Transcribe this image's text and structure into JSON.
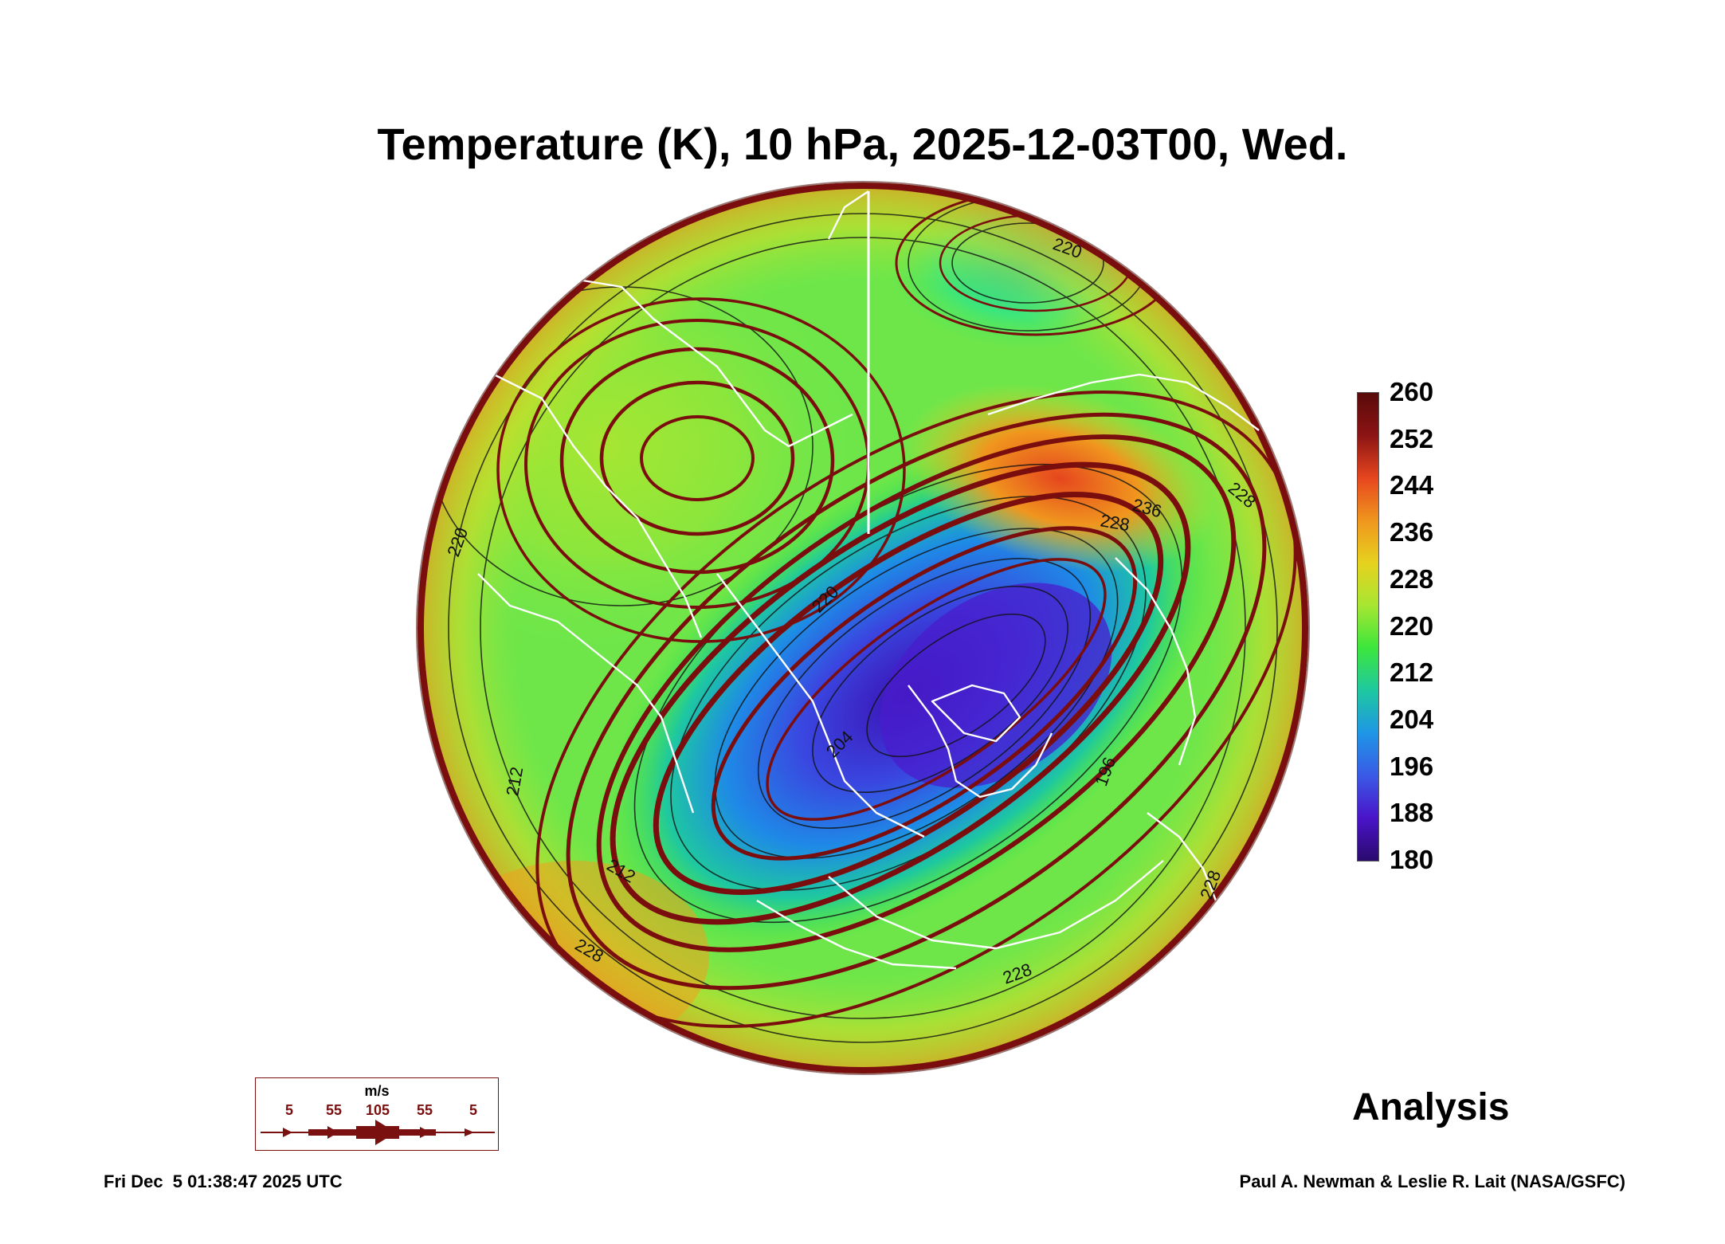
{
  "title": "Temperature (K), 10 hPa, 2025-12-03T00, Wed.",
  "colorbar": {
    "labels": [
      "260",
      "252",
      "244",
      "236",
      "228",
      "220",
      "212",
      "204",
      "196",
      "188",
      "180"
    ],
    "min": 180,
    "max": 260,
    "colors": [
      "#2a0a6e",
      "#4a14c8",
      "#3a5ae6",
      "#1e96e6",
      "#1ec8a0",
      "#3ce63c",
      "#a6e632",
      "#e6d21e",
      "#f0961e",
      "#e6461e",
      "#8c1414",
      "#5a0a0a"
    ]
  },
  "contour_labels": [
    "220",
    "212",
    "204",
    "196",
    "228",
    "220",
    "228",
    "212",
    "228",
    "236",
    "228",
    "220",
    "228"
  ],
  "wind_legend": {
    "unit": "m/s",
    "labels": [
      "5",
      "55",
      "105",
      "55",
      "5"
    ]
  },
  "analysis_label": "Analysis",
  "timestamp": "Fri Dec  5 01:38:47 2025 UTC",
  "credit": "Paul A. Newman & Leslie R. Lait (NASA/GSFC)"
}
